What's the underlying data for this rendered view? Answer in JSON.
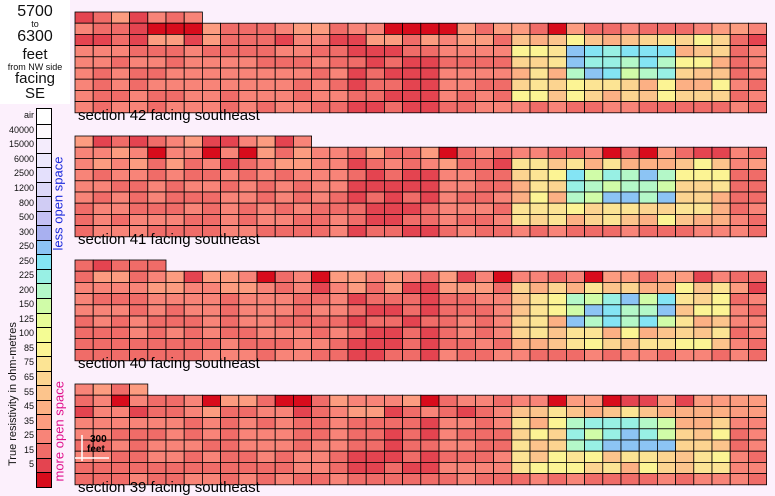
{
  "header": {
    "range_start": "5700",
    "to": "to",
    "range_end": "6300",
    "unit": "feet",
    "reference": "from NW side",
    "facing_word": "facing",
    "direction": "SE"
  },
  "legend": {
    "axis_title": "True resistivity in ohm-metres",
    "upper_note": "less open space",
    "lower_note": "more open space",
    "bins": [
      {
        "label": "air",
        "color": "#ffffff"
      },
      {
        "label": "40000",
        "color": "#fcf8fc"
      },
      {
        "label": "15000",
        "color": "#f4ecfc"
      },
      {
        "label": "6000",
        "color": "#ece8fc"
      },
      {
        "label": "2500",
        "color": "#e4e0fc"
      },
      {
        "label": "1200",
        "color": "#dcd8f8"
      },
      {
        "label": "800",
        "color": "#d0ccf4"
      },
      {
        "label": "500",
        "color": "#c4c0f4"
      },
      {
        "label": "300",
        "color": "#a8b0f0"
      },
      {
        "label": "250",
        "color": "#8cc4f4"
      },
      {
        "label": "250",
        "color": "#84e4f4"
      },
      {
        "label": "225",
        "color": "#98f0e4"
      },
      {
        "label": "200",
        "color": "#b4f8c8"
      },
      {
        "label": "150",
        "color": "#d0fca8"
      },
      {
        "label": "125",
        "color": "#e8fc98"
      },
      {
        "label": "100",
        "color": "#f4fc94"
      },
      {
        "label": "85",
        "color": "#fcf494"
      },
      {
        "label": "75",
        "color": "#fce494"
      },
      {
        "label": "65",
        "color": "#fcd490"
      },
      {
        "label": "55",
        "color": "#fcc48c"
      },
      {
        "label": "45",
        "color": "#fcb084"
      },
      {
        "label": "35",
        "color": "#fc9c80"
      },
      {
        "label": "25",
        "color": "#f88478"
      },
      {
        "label": "15",
        "color": "#f06c68"
      },
      {
        "label": "5",
        "color": "#e44450"
      },
      {
        "label": "",
        "color": "#d80c1c"
      }
    ]
  },
  "sections": [
    {
      "label": "section 42 facing southeast"
    },
    {
      "label": "section 41 facing southeast"
    },
    {
      "label": "section 40 facing southeast"
    },
    {
      "label": "section 39 facing southeast"
    }
  ],
  "scale": {
    "value": "300",
    "unit": "feet"
  },
  "colors": {
    "accent_blue": "#1a2adc",
    "accent_magenta": "#e0108c",
    "grid_line": "#000000"
  }
}
